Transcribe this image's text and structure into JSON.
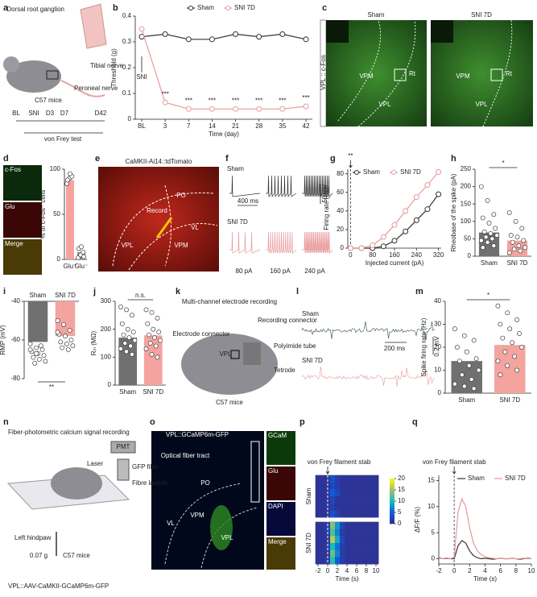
{
  "figure": {
    "panels": [
      "a",
      "b",
      "c",
      "d",
      "e",
      "f",
      "g",
      "h",
      "i",
      "j",
      "k",
      "l",
      "m",
      "n",
      "o",
      "p",
      "q"
    ],
    "a": {
      "labels": [
        "Dorsal root ganglion",
        "Tibial nerve",
        "Peroneal nerve",
        "C57 mice"
      ],
      "timeline": [
        "BL",
        "SNI",
        "D3",
        "D7",
        "D42"
      ],
      "test": "von Frey test"
    },
    "c": {
      "columns": [
        "Sham",
        "SNI 7D"
      ],
      "side": "VPL :: c-Fos",
      "regions": [
        "VPM",
        "VPL",
        "Rt",
        "VPM",
        "VPL",
        "Rt"
      ]
    },
    "d": {
      "stains": [
        "c-Fos",
        "Glu",
        "Merge"
      ]
    },
    "e": {
      "title": "CaMKII-Ai14::tdTomato",
      "regions": [
        "PO",
        "Record",
        "VPL",
        "VPM",
        "VL"
      ]
    },
    "f": {
      "groups": [
        "Sham",
        "SNI 7D"
      ],
      "time_scale": "400 ms",
      "volt_scale": "50 mV",
      "currents": [
        "80 pA",
        "160 pA",
        "240 pA"
      ]
    },
    "k": {
      "title": "Multi-channel electrode recording",
      "labels": [
        "Electrode connector",
        "Recording connector",
        "Polyimide tube",
        "Tetrode",
        "VPL",
        "C57 mice"
      ]
    },
    "l": {
      "groups": [
        "Sham",
        "SNI 7D"
      ],
      "time_scale": "200 ms",
      "volt_scale": "0.2 mV"
    },
    "n": {
      "title": "Fiber-photometric calcium signal recording",
      "labels": [
        "PMT",
        "Laser",
        "GFP filter",
        "Fibre launch",
        "Left hindpaw",
        "0.07 g",
        "C57 mice"
      ],
      "caption": "VPL::AAV-CaMKII-GCaMP6m-GFP"
    },
    "o": {
      "title": "VPL::GCaMP6m-GFP",
      "labels": [
        "Optical fiber tract",
        "PO",
        "VL",
        "VPM",
        "VPL"
      ],
      "stains": [
        "GCaM",
        "Glu",
        "DAPI",
        "Merge"
      ]
    }
  },
  "chart_data": [
    {
      "type": "line",
      "categories": [
        "BL",
        "3",
        "7",
        "14",
        "21",
        "28",
        "35",
        "42"
      ],
      "series": [
        {
          "name": "Sham",
          "color": "#333333",
          "values": [
            0.32,
            0.33,
            0.31,
            0.31,
            0.33,
            0.32,
            0.33,
            0.31
          ]
        },
        {
          "name": "SNI 7D",
          "color": "#e89a9a",
          "values": [
            0.35,
            0.065,
            0.04,
            0.04,
            0.04,
            0.04,
            0.04,
            0.05
          ]
        }
      ],
      "ylim": [
        0,
        0.4
      ],
      "yticks": [
        0,
        0.1,
        0.2,
        0.3,
        0.4
      ],
      "xlabel": "Time (day)",
      "ylabel": "Threshold (g)",
      "legend": "upper center",
      "markers": "open-circle",
      "significance": [
        null,
        "***",
        "***",
        "***",
        "***",
        "***",
        "***",
        "***"
      ],
      "annotation": "SNI"
    },
    {
      "type": "bar",
      "categories": [
        "Glu⁺",
        "Glu⁻"
      ],
      "values": [
        88,
        8
      ],
      "colors": [
        "#f4a39f",
        "#8c8c8c"
      ],
      "ylim": [
        0,
        100
      ],
      "yticks": [
        0,
        50,
        100
      ],
      "ylabel": "% of c-Fos⁺ cells",
      "points": [
        [
          84,
          90,
          92,
          88,
          95
        ],
        [
          2,
          5,
          8,
          12,
          14,
          3
        ]
      ]
    },
    {
      "type": "line",
      "x": [
        0,
        40,
        80,
        120,
        160,
        200,
        240,
        280,
        320
      ],
      "series": [
        {
          "name": "Sham",
          "color": "#333333",
          "values": [
            0,
            0,
            0,
            2,
            8,
            18,
            30,
            42,
            58
          ]
        },
        {
          "name": "SNI 7D",
          "color": "#e89a9a",
          "values": [
            0,
            0,
            3,
            12,
            25,
            40,
            55,
            68,
            82
          ]
        }
      ],
      "xlim": [
        -10,
        330
      ],
      "xticks": [
        0,
        80,
        160,
        240,
        320
      ],
      "ylim": [
        0,
        85
      ],
      "yticks": [
        0,
        20,
        40,
        60,
        80
      ],
      "xlabel": "Injected current (pA)",
      "ylabel": "Firing rate (Hz)",
      "legend": "upper left",
      "markers": "open-circle",
      "annotation": "**"
    },
    {
      "type": "bar",
      "categories": [
        "Sham",
        "SNI 7D"
      ],
      "values": [
        68,
        45
      ],
      "colors": [
        "#707070",
        "#f4a39f"
      ],
      "ylim": [
        0,
        250
      ],
      "yticks": [
        0,
        50,
        100,
        150,
        200,
        250
      ],
      "ylabel": "Rheobase of the spike (pA)",
      "significance": "*",
      "points": [
        [
          200,
          160,
          120,
          110,
          95,
          80,
          70,
          65,
          60,
          55,
          50,
          45,
          40,
          30,
          25
        ],
        [
          125,
          100,
          80,
          60,
          55,
          45,
          40,
          30,
          25,
          20,
          15,
          10
        ]
      ]
    },
    {
      "type": "bar",
      "categories": [
        "Sham",
        "SNI 7D"
      ],
      "values": [
        -61,
        -58
      ],
      "colors": [
        "#707070",
        "#f4a39f"
      ],
      "ylim": [
        -80,
        -40
      ],
      "yticks": [
        -80,
        -60,
        -40
      ],
      "ylabel": "RMP (mV)",
      "significance": "**",
      "category_labels": "top",
      "points": [
        [
          -62,
          -64,
          -65,
          -66,
          -67,
          -68,
          -69,
          -70,
          -71,
          -72,
          -63,
          -65,
          -67
        ],
        [
          -50,
          -52,
          -55,
          -57,
          -58,
          -60,
          -61,
          -62,
          -63,
          -64,
          -65,
          -56
        ]
      ]
    },
    {
      "type": "bar",
      "categories": [
        "Sham",
        "SNI 7D"
      ],
      "values": [
        170,
        178
      ],
      "colors": [
        "#707070",
        "#f4a39f"
      ],
      "ylim": [
        0,
        300
      ],
      "yticks": [
        0,
        100,
        200,
        300
      ],
      "ylabel": "Rᵢₙ (MΩ)",
      "significance": "n.s.",
      "points": [
        [
          280,
          270,
          250,
          220,
          200,
          190,
          180,
          170,
          160,
          150,
          140,
          130,
          120,
          110
        ],
        [
          270,
          260,
          240,
          220,
          200,
          190,
          180,
          170,
          160,
          150,
          140,
          130,
          110,
          100
        ]
      ]
    },
    {
      "type": "bar",
      "categories": [
        "Sham",
        "SNI 7D"
      ],
      "values": [
        14,
        21
      ],
      "colors": [
        "#707070",
        "#f4a39f"
      ],
      "ylim": [
        0,
        40
      ],
      "yticks": [
        0,
        10,
        20,
        30,
        40
      ],
      "ylabel": "Spike firing rate (Hz)",
      "significance": "*",
      "points": [
        [
          28,
          25,
          23,
          20,
          18,
          15,
          14,
          12,
          10,
          8,
          6,
          4,
          3,
          2
        ],
        [
          38,
          35,
          32,
          30,
          28,
          26,
          24,
          22,
          20,
          18,
          16,
          14,
          12,
          10,
          8
        ]
      ]
    },
    {
      "type": "heatmap",
      "x": [
        -2,
        -1,
        0,
        1,
        2,
        3,
        4,
        5,
        6,
        7,
        8,
        9,
        10
      ],
      "xlim": [
        -2.5,
        10.5
      ],
      "xticks": [
        -2,
        0,
        2,
        4,
        6,
        8,
        10
      ],
      "xlabel": "Time (s)",
      "annotation": "von Frey filament stab",
      "zlim": [
        0,
        20
      ],
      "zticks": [
        0,
        5,
        10,
        15,
        20
      ],
      "groups": [
        {
          "name": "Sham",
          "rows": [
            [
              1,
              1,
              1,
              4,
              2,
              1,
              1,
              1,
              1,
              1,
              1,
              1,
              1
            ],
            [
              1,
              1,
              1,
              3,
              2,
              1,
              1,
              1,
              1,
              1,
              1,
              1,
              1
            ],
            [
              1,
              1,
              1,
              5,
              3,
              1,
              1,
              1,
              1,
              1,
              1,
              1,
              1
            ],
            [
              1,
              1,
              1,
              3,
              1,
              1,
              1,
              1,
              1,
              1,
              1,
              1,
              1
            ],
            [
              1,
              1,
              1,
              2,
              1,
              1,
              1,
              1,
              1,
              1,
              1,
              1,
              1
            ],
            [
              1,
              1,
              1,
              4,
              2,
              1,
              1,
              1,
              1,
              1,
              1,
              1,
              1
            ]
          ]
        },
        {
          "name": "SNI 7D",
          "rows": [
            [
              1,
              1,
              2,
              14,
              8,
              3,
              1,
              1,
              1,
              1,
              1,
              1,
              1
            ],
            [
              1,
              1,
              2,
              12,
              7,
              2,
              1,
              1,
              1,
              1,
              1,
              1,
              1
            ],
            [
              1,
              1,
              1,
              16,
              9,
              3,
              1,
              1,
              1,
              1,
              1,
              1,
              1
            ],
            [
              1,
              1,
              2,
              10,
              6,
              2,
              1,
              1,
              1,
              1,
              1,
              1,
              1
            ],
            [
              1,
              1,
              1,
              13,
              7,
              2,
              1,
              1,
              1,
              1,
              1,
              1,
              1
            ],
            [
              1,
              1,
              2,
              11,
              5,
              2,
              1,
              1,
              1,
              1,
              1,
              1,
              1
            ]
          ]
        }
      ]
    },
    {
      "type": "line",
      "x": [
        -2,
        -1.5,
        -1,
        -0.5,
        0,
        0.5,
        1,
        1.5,
        2,
        2.5,
        3,
        3.5,
        4,
        4.5,
        5,
        5.5,
        6,
        6.5,
        7,
        7.5,
        8,
        8.5,
        9,
        9.5,
        10
      ],
      "series": [
        {
          "name": "Sham",
          "color": "#333333",
          "values": [
            0.2,
            0,
            0.1,
            0,
            0,
            2.5,
            3.5,
            3,
            1.5,
            0.6,
            0.2,
            0,
            0.1,
            0,
            -0.1,
            0,
            0.1,
            0,
            0,
            0.1,
            0,
            -0.1,
            0,
            0.1,
            0
          ]
        },
        {
          "name": "SNI 7D",
          "color": "#e89a9a",
          "values": [
            0.1,
            0,
            0.2,
            0,
            0.3,
            9,
            11.5,
            10,
            6,
            3,
            1.5,
            0.8,
            0.4,
            0.2,
            0.1,
            0,
            0.1,
            0,
            0,
            0.1,
            0,
            0,
            0.1,
            0,
            0
          ]
        }
      ],
      "xlim": [
        -2,
        10
      ],
      "xticks": [
        -2,
        0,
        2,
        4,
        6,
        8,
        10
      ],
      "ylim": [
        -1,
        16
      ],
      "yticks": [
        0,
        5,
        10,
        15
      ],
      "xlabel": "Time (s)",
      "ylabel": "ΔF/F (%)",
      "legend": "upper right",
      "annotation": "von Frey filament stab"
    }
  ]
}
